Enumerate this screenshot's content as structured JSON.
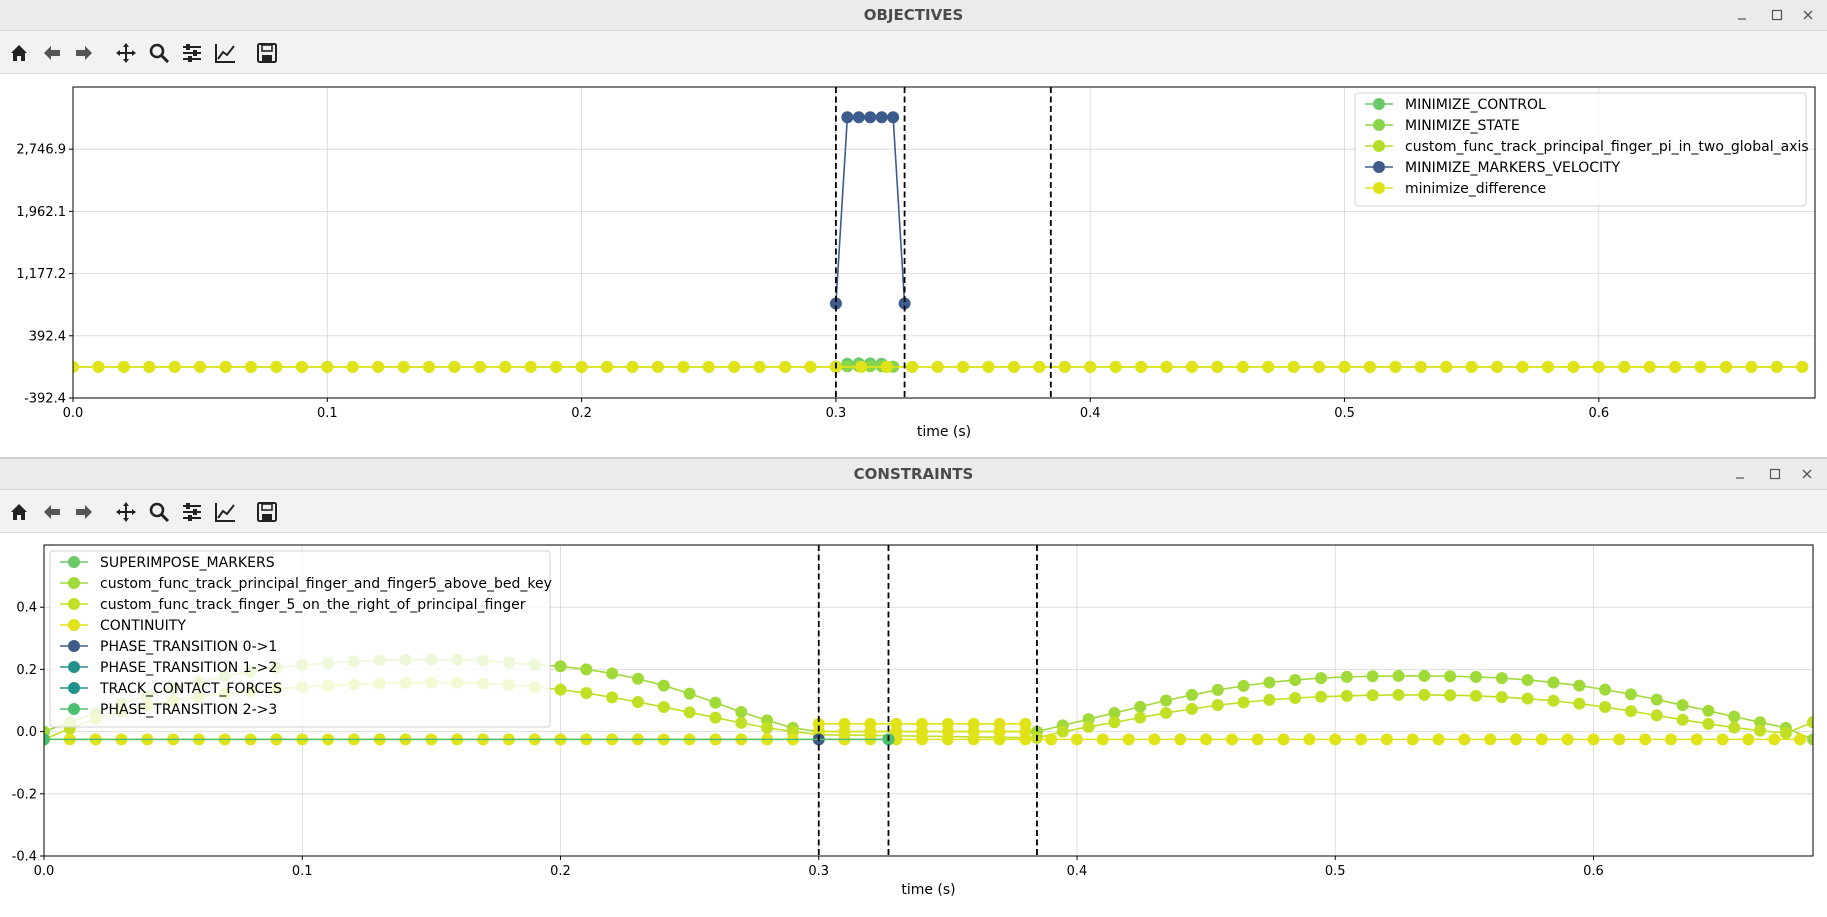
{
  "windows": [
    {
      "title": "OBJECTIVES",
      "toolbar": [
        "home-icon",
        "back-icon",
        "forward-icon",
        "pan-icon",
        "zoom-icon",
        "configure-subplots-icon",
        "edit-axis-icon",
        "save-icon"
      ],
      "chart_data": {
        "type": "line",
        "xlabel": "time (s)",
        "xlim": [
          0.0,
          0.685
        ],
        "ylim": [
          -392.4,
          3531.6
        ],
        "xticks": [
          0.0,
          0.1,
          0.2,
          0.3,
          0.4,
          0.5,
          0.6
        ],
        "xtick_labels": [
          "0.0",
          "0.1",
          "0.2",
          "0.3",
          "0.4",
          "0.5",
          "0.6"
        ],
        "yticks": [
          -392.4,
          392.4,
          1177.2,
          1962.1,
          2746.9
        ],
        "ytick_labels": [
          "-392.4",
          "392.4",
          "1,177.2",
          "1,962.1",
          "2,746.9"
        ],
        "grid": true,
        "legend_position": "top-right",
        "phase_boundaries": [
          0.3,
          0.327,
          0.3845
        ],
        "series": [
          {
            "name": "MINIMIZE_CONTROL",
            "color": "#6cc96a",
            "x": [
              0.3,
              0.3045,
              0.309,
              0.3135,
              0.318,
              0.3225
            ],
            "values": [
              4,
              40,
              45,
              45,
              40,
              4
            ]
          },
          {
            "name": "MINIMIZE_STATE",
            "color": "#89d548",
            "x": [
              0.3,
              0.3045,
              0.309,
              0.3135,
              0.318,
              0.3225
            ],
            "values": [
              2,
              6,
              8,
              8,
              6,
              2
            ]
          },
          {
            "name": "custom_func_track_principal_finger_pi_in_two_global_axis",
            "color": "#b5de2b",
            "x_start": 0.0,
            "x_step": 0.01,
            "x_end": 0.685,
            "values_constant": 0
          },
          {
            "name": "MINIMIZE_MARKERS_VELOCITY",
            "color": "#3e5c8b",
            "x": [
              0.3,
              0.3045,
              0.309,
              0.3135,
              0.318,
              0.3225,
              0.327
            ],
            "values": [
              800,
              3150,
              3150,
              3150,
              3150,
              3150,
              800
            ]
          },
          {
            "name": "minimize_difference",
            "color": "#dfe318",
            "x_start": 0.0,
            "x_step": 0.01,
            "x_end": 0.685,
            "values_constant": 0
          }
        ]
      }
    },
    {
      "title": "CONSTRAINTS",
      "toolbar": [
        "home-icon",
        "back-icon",
        "forward-icon",
        "pan-icon",
        "zoom-icon",
        "configure-subplots-icon",
        "edit-axis-icon",
        "save-icon"
      ],
      "chart_data": {
        "type": "line",
        "xlabel": "time (s)",
        "xlim": [
          0.0,
          0.685
        ],
        "ylim": [
          -0.4,
          0.6
        ],
        "xticks": [
          0.0,
          0.1,
          0.2,
          0.3,
          0.4,
          0.5,
          0.6
        ],
        "xtick_labels": [
          "0.0",
          "0.1",
          "0.2",
          "0.3",
          "0.4",
          "0.5",
          "0.6"
        ],
        "yticks": [
          -0.4,
          -0.2,
          0.0,
          0.2,
          0.4
        ],
        "ytick_labels": [
          "-0.4",
          "-0.2",
          "0.0",
          "0.2",
          "0.4"
        ],
        "grid": true,
        "legend_position": "top-left",
        "phase_boundaries": [
          0.3,
          0.327,
          0.3845
        ],
        "series": [
          {
            "name": "SUPERIMPOSE_MARKERS",
            "color": "#6cc96a",
            "points": []
          },
          {
            "name": "custom_func_track_principal_finger_and_finger5_above_bed_key",
            "color": "#a0da39",
            "points": [
              [
                0.0,
                0.0
              ],
              [
                0.01,
                0.03
              ],
              [
                0.02,
                0.06
              ],
              [
                0.03,
                0.09
              ],
              [
                0.04,
                0.115
              ],
              [
                0.05,
                0.14
              ],
              [
                0.06,
                0.16
              ],
              [
                0.07,
                0.178
              ],
              [
                0.08,
                0.193
              ],
              [
                0.09,
                0.205
              ],
              [
                0.1,
                0.214
              ],
              [
                0.11,
                0.221
              ],
              [
                0.12,
                0.226
              ],
              [
                0.13,
                0.229
              ],
              [
                0.14,
                0.231
              ],
              [
                0.15,
                0.232
              ],
              [
                0.16,
                0.231
              ],
              [
                0.17,
                0.228
              ],
              [
                0.18,
                0.222
              ],
              [
                0.19,
                0.215
              ],
              [
                0.2,
                0.21
              ],
              [
                0.21,
                0.2
              ],
              [
                0.22,
                0.187
              ],
              [
                0.23,
                0.17
              ],
              [
                0.24,
                0.148
              ],
              [
                0.25,
                0.122
              ],
              [
                0.26,
                0.093
              ],
              [
                0.27,
                0.063
              ],
              [
                0.28,
                0.036
              ],
              [
                0.29,
                0.012
              ],
              [
                0.3,
                0.0
              ],
              [
                0.3845,
                0.0
              ],
              [
                0.3945,
                0.02
              ],
              [
                0.4045,
                0.04
              ],
              [
                0.4145,
                0.06
              ],
              [
                0.4245,
                0.08
              ],
              [
                0.4345,
                0.1
              ],
              [
                0.4445,
                0.118
              ],
              [
                0.4545,
                0.134
              ],
              [
                0.4645,
                0.147
              ],
              [
                0.4745,
                0.158
              ],
              [
                0.4845,
                0.166
              ],
              [
                0.4945,
                0.172
              ],
              [
                0.5045,
                0.176
              ],
              [
                0.5145,
                0.178
              ],
              [
                0.5245,
                0.179
              ],
              [
                0.5345,
                0.179
              ],
              [
                0.5445,
                0.178
              ],
              [
                0.5545,
                0.176
              ],
              [
                0.5645,
                0.172
              ],
              [
                0.5745,
                0.166
              ],
              [
                0.5845,
                0.158
              ],
              [
                0.5945,
                0.148
              ],
              [
                0.6045,
                0.135
              ],
              [
                0.6145,
                0.12
              ],
              [
                0.6245,
                0.103
              ],
              [
                0.6345,
                0.085
              ],
              [
                0.6445,
                0.067
              ],
              [
                0.6545,
                0.048
              ],
              [
                0.6645,
                0.03
              ],
              [
                0.6745,
                0.012
              ],
              [
                0.685,
                -0.025
              ]
            ]
          },
          {
            "name": "custom_func_track_finger_5_on_the_right_of_principal_finger",
            "color": "#c2df23",
            "points": [
              [
                0.0,
                -0.025
              ],
              [
                0.01,
                0.01
              ],
              [
                0.02,
                0.04
              ],
              [
                0.03,
                0.065
              ],
              [
                0.04,
                0.085
              ],
              [
                0.05,
                0.1
              ],
              [
                0.06,
                0.112
              ],
              [
                0.07,
                0.122
              ],
              [
                0.08,
                0.13
              ],
              [
                0.09,
                0.137
              ],
              [
                0.1,
                0.143
              ],
              [
                0.11,
                0.148
              ],
              [
                0.12,
                0.152
              ],
              [
                0.13,
                0.155
              ],
              [
                0.14,
                0.157
              ],
              [
                0.15,
                0.158
              ],
              [
                0.16,
                0.157
              ],
              [
                0.17,
                0.155
              ],
              [
                0.18,
                0.15
              ],
              [
                0.19,
                0.143
              ],
              [
                0.2,
                0.135
              ],
              [
                0.21,
                0.124
              ],
              [
                0.22,
                0.11
              ],
              [
                0.23,
                0.095
              ],
              [
                0.24,
                0.079
              ],
              [
                0.25,
                0.062
              ],
              [
                0.26,
                0.045
              ],
              [
                0.27,
                0.028
              ],
              [
                0.28,
                0.012
              ],
              [
                0.29,
                0.0
              ],
              [
                0.3,
                -0.01
              ],
              [
                0.3845,
                -0.02
              ],
              [
                0.3945,
                0.0
              ],
              [
                0.4045,
                0.015
              ],
              [
                0.4145,
                0.03
              ],
              [
                0.4245,
                0.045
              ],
              [
                0.4345,
                0.06
              ],
              [
                0.4445,
                0.073
              ],
              [
                0.4545,
                0.085
              ],
              [
                0.4645,
                0.094
              ],
              [
                0.4745,
                0.102
              ],
              [
                0.4845,
                0.108
              ],
              [
                0.4945,
                0.112
              ],
              [
                0.5045,
                0.115
              ],
              [
                0.5145,
                0.117
              ],
              [
                0.5245,
                0.118
              ],
              [
                0.5345,
                0.118
              ],
              [
                0.5445,
                0.117
              ],
              [
                0.5545,
                0.115
              ],
              [
                0.5645,
                0.111
              ],
              [
                0.5745,
                0.106
              ],
              [
                0.5845,
                0.099
              ],
              [
                0.5945,
                0.09
              ],
              [
                0.6045,
                0.079
              ],
              [
                0.6145,
                0.066
              ],
              [
                0.6245,
                0.052
              ],
              [
                0.6345,
                0.038
              ],
              [
                0.6445,
                0.025
              ],
              [
                0.6545,
                0.013
              ],
              [
                0.6645,
                0.003
              ],
              [
                0.6745,
                -0.005
              ],
              [
                0.685,
                0.03
              ]
            ]
          },
          {
            "name": "CONTINUITY",
            "color": "#dfe318",
            "x_start": 0.0,
            "x_step": 0.01,
            "x_end": 0.685,
            "values_constant": -0.025,
            "extra_rows": [
              0.025,
              0.0
            ],
            "extra_range": [
              0.3,
              0.3845
            ]
          },
          {
            "name": "PHASE_TRANSITION 0->1",
            "color": "#3e5c8b",
            "points": [
              [
                0.3,
                -0.025
              ]
            ]
          },
          {
            "name": "PHASE_TRANSITION 1->2",
            "color": "#23928c",
            "points": [
              [
                0.327,
                -0.025
              ]
            ]
          },
          {
            "name": "TRACK_CONTACT_FORCES",
            "color": "#21918c",
            "points": []
          },
          {
            "name": "PHASE_TRANSITION 2->3",
            "color": "#4bc16f",
            "points": [
              [
                0.0,
                -0.025
              ],
              [
                0.327,
                -0.025
              ]
            ]
          }
        ]
      }
    }
  ]
}
